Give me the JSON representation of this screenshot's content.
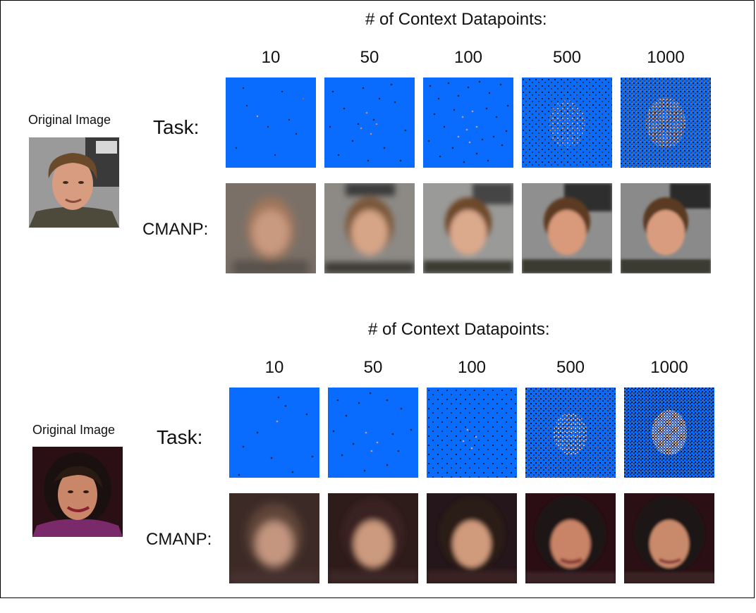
{
  "panels": [
    {
      "heading": "# of Context Datapoints:",
      "original_label": "Original Image",
      "row_labels": {
        "task": "Task:",
        "cmanp": "CMANP:"
      },
      "columns": [
        "10",
        "50",
        "100",
        "500",
        "1000"
      ]
    },
    {
      "heading": "# of Context Datapoints:",
      "original_label": "Original Image",
      "row_labels": {
        "task": "Task:",
        "cmanp": "CMANP:"
      },
      "columns": [
        "10",
        "50",
        "100",
        "500",
        "1000"
      ]
    }
  ],
  "colors": {
    "mask_blue": "#0a6bff",
    "frame": "#000000"
  }
}
